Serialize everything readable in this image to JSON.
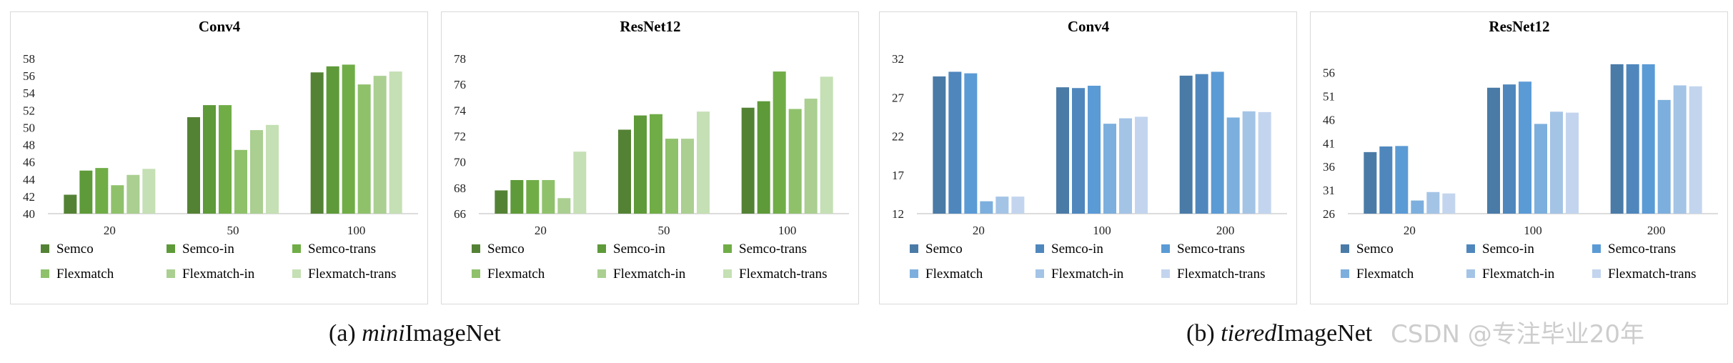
{
  "colors": {
    "green": [
      "#548235",
      "#5e9a39",
      "#70ad47",
      "#8fc16b",
      "#aacf91",
      "#c5e0b4"
    ],
    "blue": [
      "#4a7ba7",
      "#4f87bd",
      "#5b9bd5",
      "#7cafdd",
      "#a4c4e6",
      "#c3d5ee"
    ]
  },
  "captions": {
    "a": {
      "label": "(a) ",
      "italic": "mini",
      "rest": "ImageNet"
    },
    "b": {
      "label": "(b) ",
      "italic": "tiered",
      "rest": "ImageNet"
    }
  },
  "watermark": "CSDN @专注毕业20年",
  "chart_data": [
    {
      "type": "bar",
      "title": "Conv4",
      "dataset": "miniImageNet",
      "palette": "green",
      "categories": [
        "20",
        "50",
        "100"
      ],
      "yticks": [
        40,
        42,
        44,
        46,
        48,
        50,
        52,
        54,
        56,
        58
      ],
      "ylim": [
        40,
        58
      ],
      "series": [
        {
          "name": "Semco",
          "values": [
            42.2,
            51.2,
            56.4
          ]
        },
        {
          "name": "Semco-in",
          "values": [
            45.0,
            52.6,
            57.1
          ]
        },
        {
          "name": "Semco-trans",
          "values": [
            45.3,
            52.6,
            57.3
          ]
        },
        {
          "name": "Flexmatch",
          "values": [
            43.3,
            47.4,
            55.0
          ]
        },
        {
          "name": "Flexmatch-in",
          "values": [
            44.5,
            49.7,
            56.0
          ]
        },
        {
          "name": "Flexmatch-trans",
          "values": [
            45.2,
            50.3,
            56.5
          ]
        }
      ]
    },
    {
      "type": "bar",
      "title": "ResNet12",
      "dataset": "miniImageNet",
      "palette": "green",
      "categories": [
        "20",
        "50",
        "100"
      ],
      "yticks": [
        66,
        68,
        70,
        72,
        74,
        76,
        78
      ],
      "ylim": [
        66,
        78
      ],
      "series": [
        {
          "name": "Semco",
          "values": [
            67.8,
            72.5,
            74.2
          ]
        },
        {
          "name": "Semco-in",
          "values": [
            68.6,
            73.6,
            74.7
          ]
        },
        {
          "name": "Semco-trans",
          "values": [
            68.6,
            73.7,
            77.0
          ]
        },
        {
          "name": "Flexmatch",
          "values": [
            68.6,
            71.8,
            74.1
          ]
        },
        {
          "name": "Flexmatch-in",
          "values": [
            67.2,
            71.8,
            74.9
          ]
        },
        {
          "name": "Flexmatch-trans",
          "values": [
            70.8,
            73.9,
            76.6
          ]
        }
      ]
    },
    {
      "type": "bar",
      "title": "Conv4",
      "dataset": "tieredImageNet",
      "palette": "blue",
      "categories": [
        "20",
        "100",
        "200"
      ],
      "yticks": [
        12,
        17,
        22,
        27,
        32
      ],
      "ylim": [
        12,
        32
      ],
      "series": [
        {
          "name": "Semco",
          "values": [
            29.7,
            28.3,
            29.8
          ]
        },
        {
          "name": "Semco-in",
          "values": [
            30.3,
            28.2,
            30.0
          ]
        },
        {
          "name": "Semco-trans",
          "values": [
            30.1,
            28.5,
            30.3
          ]
        },
        {
          "name": "Flexmatch",
          "values": [
            13.6,
            23.6,
            24.4
          ]
        },
        {
          "name": "Flexmatch-in",
          "values": [
            14.2,
            24.3,
            25.2
          ]
        },
        {
          "name": "Flexmatch-trans",
          "values": [
            14.2,
            24.5,
            25.1
          ]
        }
      ]
    },
    {
      "type": "bar",
      "title": "ResNet12",
      "dataset": "tieredImageNet",
      "palette": "blue",
      "categories": [
        "20",
        "100",
        "200"
      ],
      "yticks": [
        26,
        31,
        36,
        41,
        46,
        51,
        56
      ],
      "ylim": [
        26,
        59
      ],
      "series": [
        {
          "name": "Semco",
          "values": [
            39.1,
            52.8,
            57.8
          ]
        },
        {
          "name": "Semco-in",
          "values": [
            40.3,
            53.5,
            57.8
          ]
        },
        {
          "name": "Semco-trans",
          "values": [
            40.4,
            54.1,
            57.8
          ]
        },
        {
          "name": "Flexmatch",
          "values": [
            28.8,
            45.1,
            50.2
          ]
        },
        {
          "name": "Flexmatch-in",
          "values": [
            30.6,
            47.7,
            53.3
          ]
        },
        {
          "name": "Flexmatch-trans",
          "values": [
            30.3,
            47.5,
            53.1
          ]
        }
      ]
    }
  ]
}
